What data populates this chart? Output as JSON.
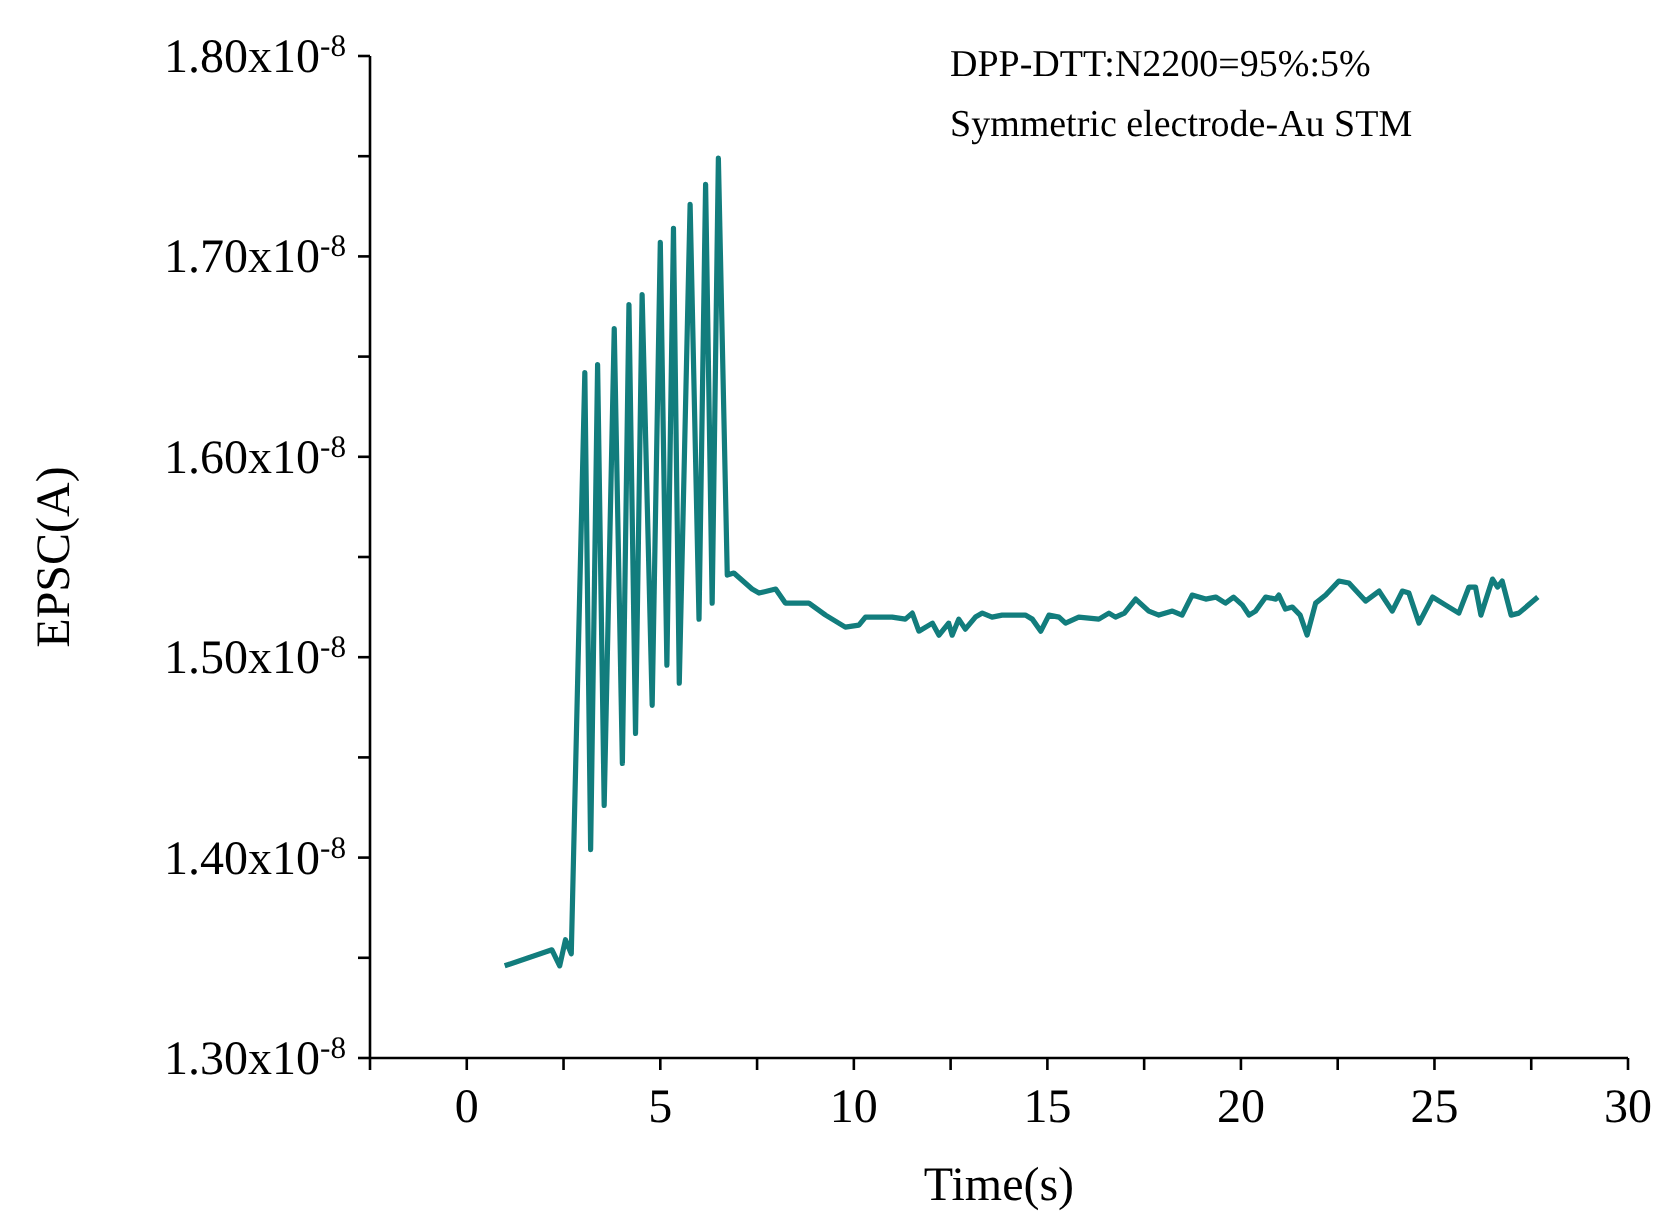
{
  "chart_data": {
    "type": "line",
    "xlabel": "Time(s)",
    "ylabel": "EPSC(A)",
    "annotations": [
      "DPP-DTT:N2200=95%:5%",
      "Symmetric electrode-Au STM"
    ],
    "xlim": [
      -2.5,
      30
    ],
    "xticks": [
      {
        "value": -2.5,
        "label": null
      },
      0,
      {
        "value": 2.5,
        "label": null
      },
      5,
      {
        "value": 7.5,
        "label": null
      },
      10,
      {
        "value": 12.5,
        "label": null
      },
      15,
      {
        "value": 17.5,
        "label": null
      },
      20,
      {
        "value": 22.5,
        "label": null
      },
      25,
      {
        "value": 27.5,
        "label": null
      },
      30
    ],
    "ylim": [
      1.3e-08,
      1.8e-08
    ],
    "yticks": [
      {
        "value": 1.3e-08,
        "label": "1.30x10$^{-8}$"
      },
      {
        "value": 1.35e-08,
        "label": null
      },
      {
        "value": 1.4e-08,
        "label": "1.40x10$^{-8}$"
      },
      {
        "value": 1.45e-08,
        "label": null
      },
      {
        "value": 1.5e-08,
        "label": "1.50x10$^{-8}$"
      },
      {
        "value": 1.55e-08,
        "label": null
      },
      {
        "value": 1.6e-08,
        "label": "1.60x10$^{-8}$"
      },
      {
        "value": 1.65e-08,
        "label": null
      },
      {
        "value": 1.7e-08,
        "label": "1.70x10$^{-8}$"
      },
      {
        "value": 1.75e-08,
        "label": null
      },
      {
        "value": 1.8e-08,
        "label": "1.80x10$^{-8}$"
      }
    ],
    "grid": false,
    "legend": false,
    "marker": "none",
    "line_style": "solid",
    "series": [
      {
        "color": "#127d7d",
        "x": [
          0.98,
          2.2,
          2.4,
          2.55,
          2.7,
          3.05,
          3.2,
          3.38,
          3.55,
          3.81,
          4.02,
          4.19,
          4.36,
          4.53,
          4.79,
          5.0,
          5.17,
          5.34,
          5.49,
          5.77,
          6.0,
          6.17,
          6.34,
          6.5,
          6.73,
          6.9,
          7.37,
          7.55,
          7.98,
          8.23,
          8.84,
          9.27,
          9.78,
          10.13,
          10.3,
          10.99,
          11.33,
          11.51,
          11.68,
          12.03,
          12.2,
          12.45,
          12.54,
          12.71,
          12.88,
          13.14,
          13.32,
          13.57,
          13.83,
          14.18,
          14.43,
          14.61,
          14.83,
          15.04,
          15.3,
          15.47,
          15.81,
          16.33,
          16.59,
          16.76,
          16.99,
          17.28,
          17.62,
          17.88,
          18.23,
          18.48,
          18.74,
          19.09,
          19.35,
          19.6,
          19.81,
          20.04,
          20.21,
          20.38,
          20.64,
          20.9,
          20.98,
          21.15,
          21.33,
          21.53,
          21.71,
          21.93,
          22.19,
          22.53,
          22.79,
          23.22,
          23.57,
          23.91,
          24.17,
          24.34,
          24.6,
          24.95,
          25.29,
          25.63,
          25.89,
          26.06,
          26.2,
          26.5,
          26.63,
          26.75,
          26.98,
          27.18,
          27.67
        ],
        "values": [
          1.346e-08,
          1.354e-08,
          1.346e-08,
          1.359e-08,
          1.352e-08,
          1.642e-08,
          1.404e-08,
          1.646e-08,
          1.426e-08,
          1.664e-08,
          1.447e-08,
          1.676e-08,
          1.462e-08,
          1.681e-08,
          1.476e-08,
          1.707e-08,
          1.496e-08,
          1.714e-08,
          1.487e-08,
          1.726e-08,
          1.519e-08,
          1.736e-08,
          1.527e-08,
          1.749e-08,
          1.541e-08,
          1.542e-08,
          1.534e-08,
          1.532e-08,
          1.534e-08,
          1.527e-08,
          1.527e-08,
          1.521e-08,
          1.515e-08,
          1.516e-08,
          1.52e-08,
          1.52e-08,
          1.519e-08,
          1.522e-08,
          1.513e-08,
          1.517e-08,
          1.511e-08,
          1.517e-08,
          1.511e-08,
          1.519e-08,
          1.514e-08,
          1.52e-08,
          1.522e-08,
          1.52e-08,
          1.521e-08,
          1.521e-08,
          1.521e-08,
          1.519e-08,
          1.513e-08,
          1.521e-08,
          1.52e-08,
          1.517e-08,
          1.52e-08,
          1.519e-08,
          1.522e-08,
          1.52e-08,
          1.522e-08,
          1.529e-08,
          1.523e-08,
          1.521e-08,
          1.523e-08,
          1.521e-08,
          1.531e-08,
          1.529e-08,
          1.53e-08,
          1.527e-08,
          1.53e-08,
          1.526e-08,
          1.521e-08,
          1.523e-08,
          1.53e-08,
          1.529e-08,
          1.531e-08,
          1.524e-08,
          1.525e-08,
          1.521e-08,
          1.511e-08,
          1.527e-08,
          1.531e-08,
          1.538e-08,
          1.537e-08,
          1.528e-08,
          1.533e-08,
          1.523e-08,
          1.533e-08,
          1.532e-08,
          1.517e-08,
          1.53e-08,
          1.526e-08,
          1.522e-08,
          1.535e-08,
          1.535e-08,
          1.521e-08,
          1.539e-08,
          1.535e-08,
          1.538e-08,
          1.521e-08,
          1.522e-08,
          1.53e-08
        ]
      }
    ]
  }
}
